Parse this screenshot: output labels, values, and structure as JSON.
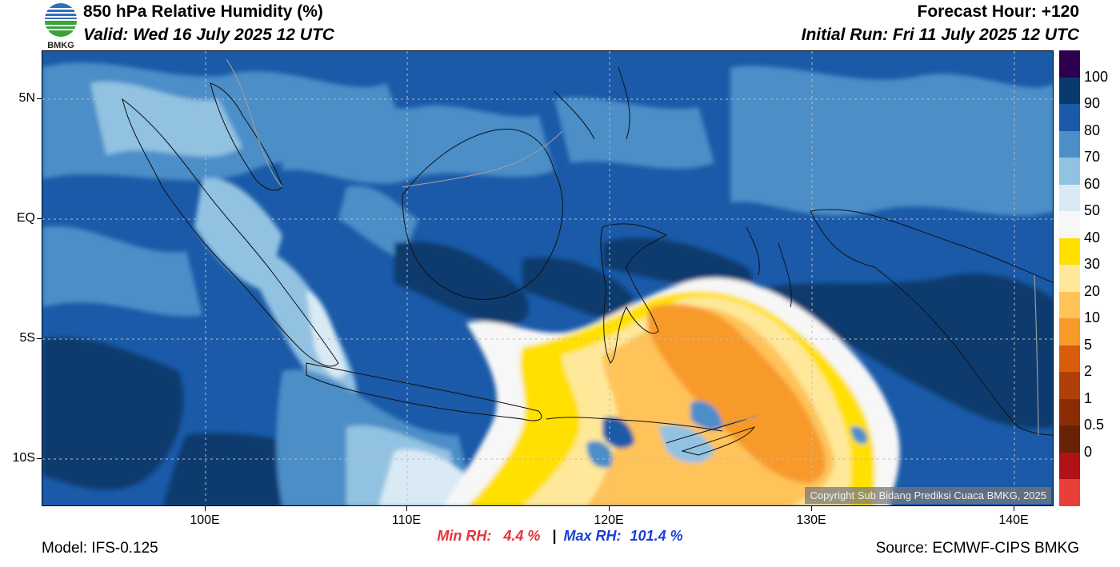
{
  "header": {
    "logo_text": "BMKG",
    "title": "850 hPa Relative Humidity (%)",
    "valid": "Valid: Wed 16 July 2025 12 UTC",
    "forecast_hour": "Forecast Hour: +120",
    "initial_run": "Initial Run: Fri 11 July 2025 12 UTC"
  },
  "map": {
    "lat_labels": [
      "5N",
      "EQ",
      "5S",
      "10S"
    ],
    "lon_labels": [
      "100E",
      "110E",
      "120E",
      "130E",
      "140E"
    ],
    "copyright": "Copyright Sub Bidang Prediksi Cuaca BMKG, 2025"
  },
  "colorbar": {
    "labels": [
      "100",
      "90",
      "80",
      "70",
      "60",
      "50",
      "40",
      "30",
      "20",
      "10",
      "5",
      "2",
      "1",
      "0.5",
      "0"
    ],
    "colors": [
      "#2d004f",
      "#083a6e",
      "#1a5aa8",
      "#4b8ec8",
      "#92c2e2",
      "#d9eaf5",
      "#f7f7f7",
      "#ffe000",
      "#ffe89a",
      "#ffc35a",
      "#f89a2a",
      "#d85c0c",
      "#b0400a",
      "#8a2d05",
      "#6a2206",
      "#b11218",
      "#e84038"
    ]
  },
  "stats": {
    "min_label": "Min RH:",
    "min_value": "4.4 %",
    "separator": "|",
    "max_label": "Max RH:",
    "max_value": "101.4 %"
  },
  "footer": {
    "model": "Model: IFS-0.125",
    "source": "Source: ECMWF-CIPS BMKG"
  }
}
